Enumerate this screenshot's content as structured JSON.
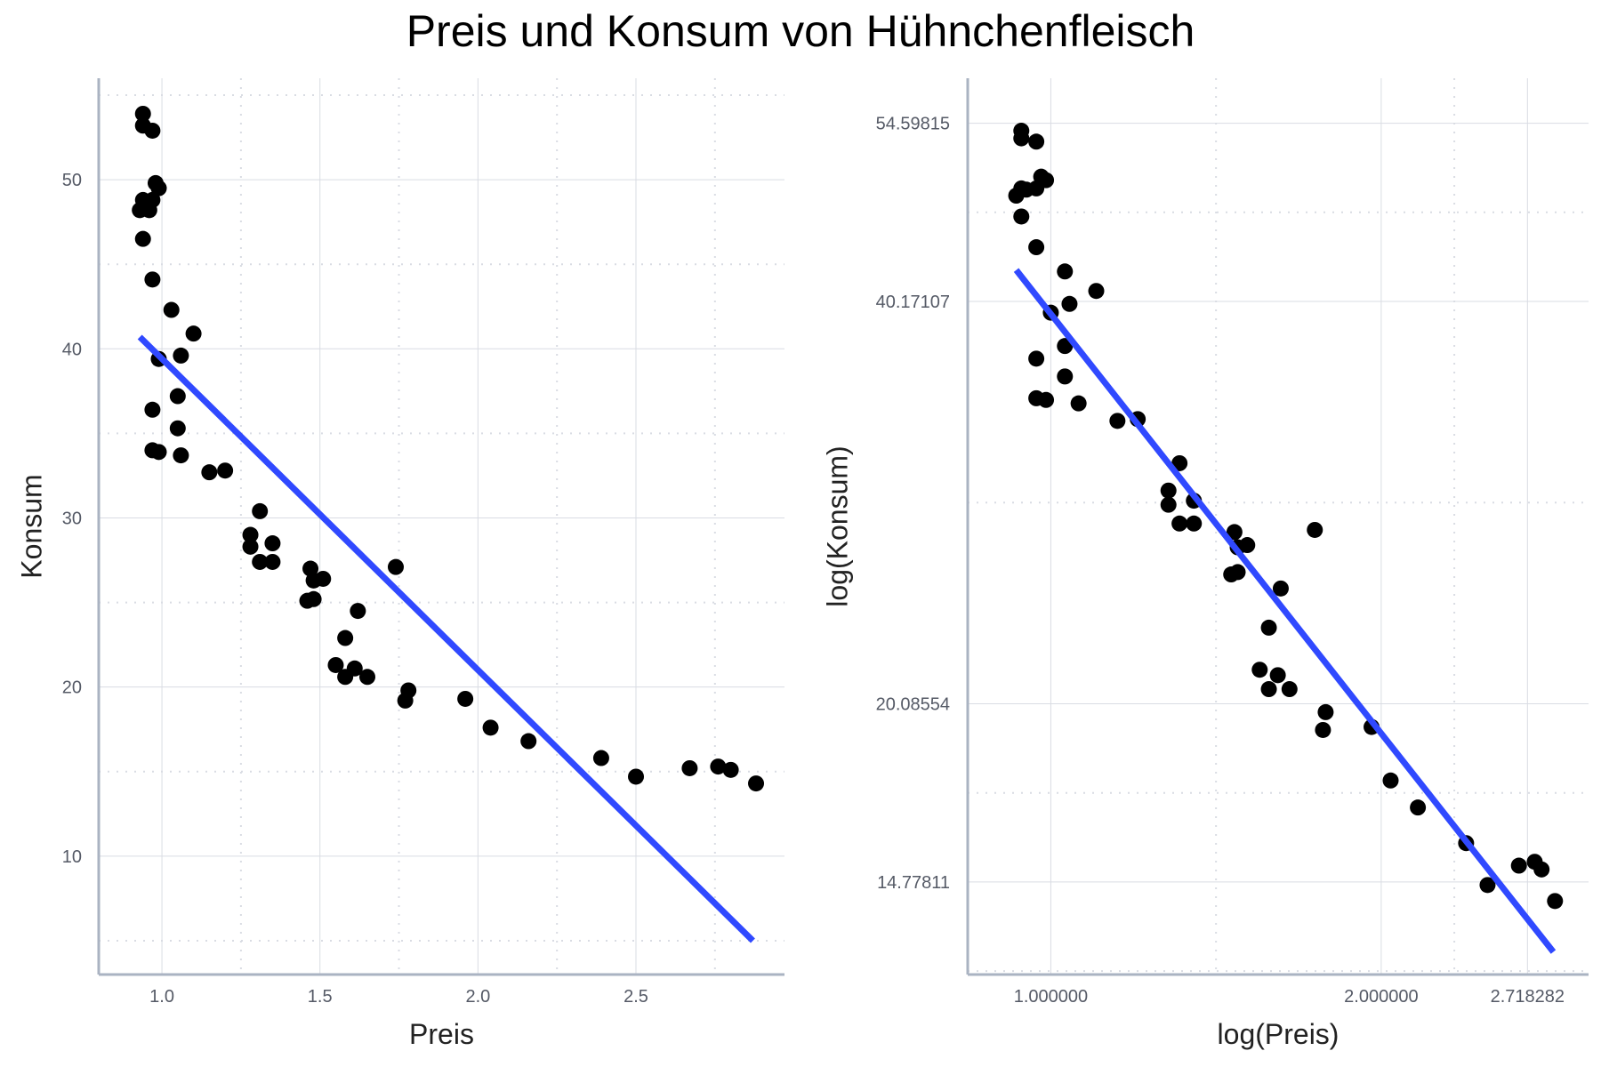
{
  "title": "Preis und Konsum von Hühnchenfleisch",
  "chart_data": [
    {
      "type": "scatter",
      "title": "",
      "xlabel": "Preis",
      "ylabel": "Konsum",
      "xlim": [
        0.8,
        2.97
      ],
      "ylim": [
        3.0,
        56.0
      ],
      "xticks": [
        1.0,
        1.5,
        2.0,
        2.5
      ],
      "xtick_labels": [
        "1.0",
        "1.5",
        "2.0",
        "2.5"
      ],
      "yticks": [
        10,
        20,
        30,
        40,
        50
      ],
      "ytick_labels": [
        "10",
        "20",
        "30",
        "40",
        "50"
      ],
      "grid": true,
      "points": [
        [
          0.94,
          53.9
        ],
        [
          0.94,
          53.2
        ],
        [
          0.97,
          52.9
        ],
        [
          0.98,
          49.8
        ],
        [
          0.99,
          49.5
        ],
        [
          0.94,
          48.8
        ],
        [
          0.97,
          48.8
        ],
        [
          0.95,
          48.7
        ],
        [
          0.93,
          48.2
        ],
        [
          0.96,
          48.2
        ],
        [
          0.94,
          46.5
        ],
        [
          0.97,
          44.1
        ],
        [
          1.03,
          42.3
        ],
        [
          1.1,
          40.9
        ],
        [
          0.99,
          39.4
        ],
        [
          1.06,
          39.6
        ],
        [
          1.05,
          37.2
        ],
        [
          0.97,
          36.4
        ],
        [
          1.05,
          35.3
        ],
        [
          0.97,
          34.0
        ],
        [
          0.99,
          33.9
        ],
        [
          1.06,
          33.7
        ],
        [
          1.15,
          32.7
        ],
        [
          1.2,
          32.8
        ],
        [
          1.31,
          30.4
        ],
        [
          1.28,
          29.0
        ],
        [
          1.28,
          28.3
        ],
        [
          1.35,
          28.5
        ],
        [
          1.31,
          27.4
        ],
        [
          1.35,
          27.4
        ],
        [
          1.47,
          27.0
        ],
        [
          1.48,
          26.3
        ],
        [
          1.51,
          26.4
        ],
        [
          1.74,
          27.1
        ],
        [
          1.46,
          25.1
        ],
        [
          1.48,
          25.2
        ],
        [
          1.62,
          24.5
        ],
        [
          1.58,
          22.9
        ],
        [
          1.55,
          21.3
        ],
        [
          1.61,
          21.1
        ],
        [
          1.58,
          20.6
        ],
        [
          1.65,
          20.6
        ],
        [
          1.78,
          19.8
        ],
        [
          1.77,
          19.2
        ],
        [
          1.96,
          19.3
        ],
        [
          2.04,
          17.6
        ],
        [
          2.16,
          16.8
        ],
        [
          2.39,
          15.8
        ],
        [
          2.5,
          14.7
        ],
        [
          2.67,
          15.2
        ],
        [
          2.76,
          15.3
        ],
        [
          2.8,
          15.1
        ],
        [
          2.88,
          14.3
        ]
      ],
      "fit_line": [
        [
          0.93,
          40.7
        ],
        [
          2.87,
          5.0
        ]
      ],
      "point_color": "#000000",
      "line_color": "#3049ff"
    },
    {
      "type": "scatter",
      "title": "",
      "xlabel": "log(Preis)",
      "ylabel": "log(Konsum)",
      "xscale": "log",
      "yscale": "log",
      "xlim": [
        0.84,
        3.09
      ],
      "ylim": [
        12.6,
        59.0
      ],
      "xticks": [
        1.0,
        2.0,
        2.718282
      ],
      "xtick_labels": [
        "1.000000",
        "2.000000",
        "2.718282"
      ],
      "yticks": [
        14.77811,
        20.08554,
        40.17107,
        54.59815
      ],
      "ytick_labels": [
        "14.77811",
        "20.08554",
        "40.17107",
        "54.59815"
      ],
      "grid": true,
      "points": [
        [
          0.94,
          53.9
        ],
        [
          0.94,
          53.2
        ],
        [
          0.97,
          52.9
        ],
        [
          0.98,
          49.8
        ],
        [
          0.99,
          49.5
        ],
        [
          0.94,
          48.8
        ],
        [
          0.97,
          48.8
        ],
        [
          0.95,
          48.7
        ],
        [
          0.93,
          48.2
        ],
        [
          0.94,
          46.5
        ],
        [
          0.97,
          44.1
        ],
        [
          1.03,
          42.3
        ],
        [
          1.1,
          40.9
        ],
        [
          1.04,
          40.0
        ],
        [
          1.0,
          39.4
        ],
        [
          1.03,
          37.2
        ],
        [
          0.97,
          36.4
        ],
        [
          1.03,
          35.3
        ],
        [
          0.97,
          34.0
        ],
        [
          0.99,
          33.9
        ],
        [
          1.06,
          33.7
        ],
        [
          1.15,
          32.7
        ],
        [
          1.2,
          32.8
        ],
        [
          1.31,
          30.4
        ],
        [
          1.28,
          29.0
        ],
        [
          1.35,
          28.5
        ],
        [
          1.28,
          28.3
        ],
        [
          1.31,
          27.4
        ],
        [
          1.35,
          27.4
        ],
        [
          1.47,
          27.0
        ],
        [
          1.74,
          27.1
        ],
        [
          1.51,
          26.4
        ],
        [
          1.48,
          26.3
        ],
        [
          1.46,
          25.1
        ],
        [
          1.48,
          25.2
        ],
        [
          1.62,
          24.5
        ],
        [
          1.58,
          22.9
        ],
        [
          1.55,
          21.3
        ],
        [
          1.61,
          21.1
        ],
        [
          1.58,
          20.6
        ],
        [
          1.65,
          20.6
        ],
        [
          1.78,
          19.8
        ],
        [
          1.77,
          19.2
        ],
        [
          1.96,
          19.3
        ],
        [
          2.04,
          17.6
        ],
        [
          2.16,
          16.8
        ],
        [
          2.39,
          15.8
        ],
        [
          2.5,
          14.7
        ],
        [
          2.67,
          15.2
        ],
        [
          2.76,
          15.3
        ],
        [
          2.8,
          15.1
        ],
        [
          2.88,
          14.3
        ]
      ],
      "fit_line": [
        [
          0.93,
          42.4
        ],
        [
          2.87,
          13.1
        ]
      ],
      "point_color": "#000000",
      "line_color": "#3049ff"
    }
  ],
  "colors": {
    "axis": "#aab3c2",
    "grid": "#d9dce3",
    "tick_text": "#555a66"
  }
}
